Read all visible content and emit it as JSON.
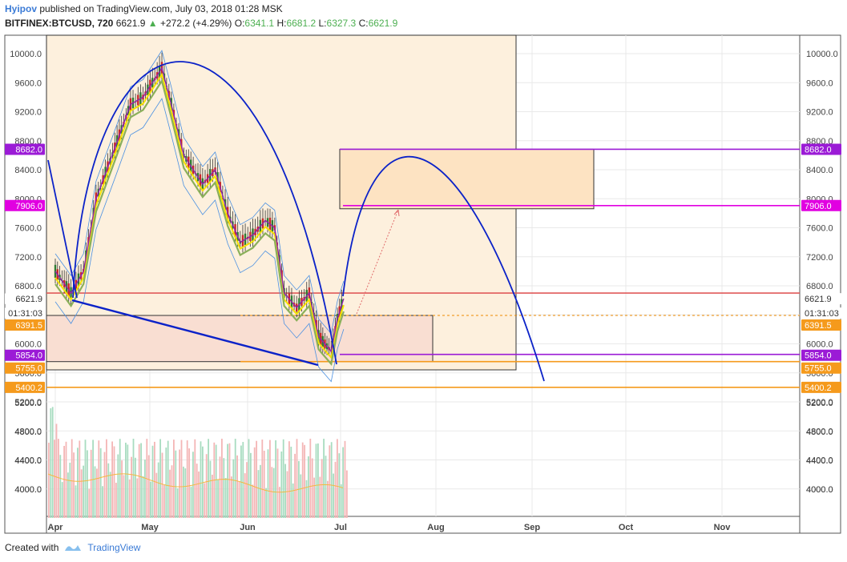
{
  "header": {
    "author": "Hyipov",
    "published_text": "published on TradingView.com, July 03, 2018 01:28 MSK",
    "symbol": "BITFINEX:BTCUSD, 720",
    "last": "6621.9",
    "arrow": "▲",
    "change": "+272.2 (+4.29%)",
    "o_label": "O:",
    "o_value": "6341.1",
    "h_label": "H:",
    "h_value": "6681.2",
    "l_label": "L:",
    "l_value": "6327.3",
    "c_label": "C:",
    "c_value": "6621.9"
  },
  "footer": {
    "created_with": "Created with",
    "brand": "TradingView"
  },
  "colors": {
    "up": "#4caf50",
    "down": "#ef5350",
    "ma_fast": "#f5e100",
    "ma_slow": "#8bb05a",
    "band": "#4a90e2",
    "arc": "#0b22c8",
    "magenta": "#e100e1",
    "purple": "#9b1bd6",
    "orange": "#f59a1c",
    "dotted": "#ef8a00",
    "red_line": "#e05a5a"
  },
  "chart_data": {
    "type": "candlestick",
    "price_axis": {
      "ticks": [
        "10000.0",
        "9600.0",
        "9200.0",
        "8800.0",
        "8400.0",
        "8000.0",
        "7600.0",
        "7200.0",
        "6800.0",
        "6000.0",
        "5600.0",
        "5200.0",
        "4800.0",
        "4400.0",
        "4000.0"
      ],
      "left_labels": [
        {
          "text": "8682.0",
          "style": "purple"
        },
        {
          "text": "7906.0",
          "style": "magenta"
        },
        {
          "text": "6621.9",
          "style": "plain"
        },
        {
          "text": "01:31:03",
          "style": "plain"
        },
        {
          "text": "6391.5",
          "style": "orange"
        },
        {
          "text": "5854.0",
          "style": "purple"
        },
        {
          "text": "5755.0",
          "style": "orange"
        },
        {
          "text": "5400.2",
          "style": "orange"
        }
      ],
      "right_labels": [
        {
          "text": "8682.0",
          "style": "purple"
        },
        {
          "text": "7906.0",
          "style": "magenta"
        },
        {
          "text": "6621.9",
          "style": "plain"
        },
        {
          "text": "01:31:03",
          "style": "plain"
        },
        {
          "text": "6391.5",
          "style": "orange"
        },
        {
          "text": "5854.0",
          "style": "purple"
        },
        {
          "text": "5755.0",
          "style": "orange"
        },
        {
          "text": "5400.2",
          "style": "orange"
        }
      ]
    },
    "time_axis": [
      "Apr",
      "May",
      "Jun",
      "Jul",
      "Aug",
      "Sep",
      "Oct",
      "Nov"
    ],
    "price_series": [
      [
        "2018-04-01",
        7000
      ],
      [
        "2018-04-06",
        6700
      ],
      [
        "2018-04-10",
        7000
      ],
      [
        "2018-04-14",
        8000
      ],
      [
        "2018-04-20",
        8700
      ],
      [
        "2018-04-25",
        9300
      ],
      [
        "2018-04-29",
        9400
      ],
      [
        "2018-05-05",
        9800
      ],
      [
        "2018-05-08",
        9300
      ],
      [
        "2018-05-12",
        8600
      ],
      [
        "2018-05-18",
        8200
      ],
      [
        "2018-05-22",
        8400
      ],
      [
        "2018-05-26",
        7800
      ],
      [
        "2018-05-30",
        7400
      ],
      [
        "2018-06-03",
        7500
      ],
      [
        "2018-06-07",
        7700
      ],
      [
        "2018-06-10",
        7600
      ],
      [
        "2018-06-13",
        6700
      ],
      [
        "2018-06-17",
        6500
      ],
      [
        "2018-06-21",
        6700
      ],
      [
        "2018-06-24",
        6100
      ],
      [
        "2018-06-26",
        6000
      ],
      [
        "2018-06-28",
        5900
      ],
      [
        "2018-06-30",
        6350
      ],
      [
        "2018-07-02",
        6621.9
      ]
    ],
    "levels": [
      {
        "price": 8682.0,
        "color": "purple"
      },
      {
        "price": 7906.0,
        "color": "magenta"
      },
      {
        "price": 6700.0,
        "color": "red_line"
      },
      {
        "price": 6391.5,
        "color": "dotted"
      },
      {
        "price": 5854.0,
        "color": "purple"
      },
      {
        "price": 5755.0,
        "color": "orange"
      },
      {
        "price": 5400.2,
        "color": "orange"
      }
    ],
    "volume_ticks": [
      "4000.0",
      "4400.0",
      "4800.0",
      "5200.0"
    ]
  }
}
